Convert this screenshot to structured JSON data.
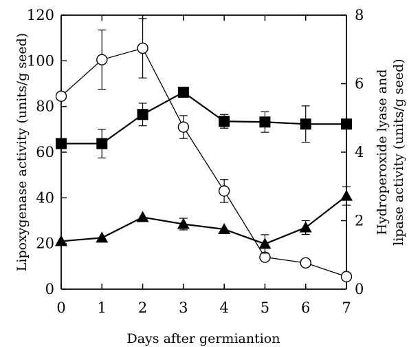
{
  "chart_data": {
    "type": "line",
    "xlabel": "Days after germiantion",
    "ylabel_left": "Lipoxygenase activity (units/g seed)",
    "ylabel_right_lines": [
      "Hydroperoxide lyase and",
      "lipase activity (units/g seed)"
    ],
    "x": [
      0,
      1,
      2,
      3,
      4,
      5,
      6,
      7
    ],
    "xlim": [
      0,
      7
    ],
    "ylim_left": [
      0,
      120
    ],
    "ylim_right": [
      0,
      8
    ],
    "x_ticks": [
      0,
      1,
      2,
      3,
      4,
      5,
      6,
      7
    ],
    "y_ticks_left": [
      0,
      20,
      40,
      60,
      80,
      100,
      120
    ],
    "y_ticks_right": [
      0,
      2,
      4,
      6,
      8
    ],
    "grid": false,
    "legend": "none",
    "series": [
      {
        "marker": "open-circle",
        "axis": "left",
        "values": [
          84.5,
          100.5,
          105.5,
          71,
          43,
          14,
          11.5,
          5.5
        ],
        "error": [
          0,
          13,
          13,
          5,
          5,
          0,
          0,
          0
        ]
      },
      {
        "marker": "filled-square",
        "axis": "right",
        "values": [
          4.25,
          4.25,
          5.1,
          5.75,
          4.9,
          4.88,
          4.82,
          4.82
        ],
        "error": [
          0,
          0.42,
          0.33,
          0,
          0.2,
          0.3,
          0.53,
          0
        ]
      },
      {
        "marker": "filled-triangle",
        "axis": "right",
        "values": [
          1.4,
          1.5,
          2.1,
          1.9,
          1.75,
          1.32,
          1.8,
          2.72
        ],
        "error": [
          0,
          0,
          0,
          0.17,
          0,
          0.27,
          0.2,
          0.27
        ]
      }
    ],
    "colors": {
      "line": "#000000",
      "marker_fill": "#000000",
      "open_fill": "#ffffff"
    }
  }
}
